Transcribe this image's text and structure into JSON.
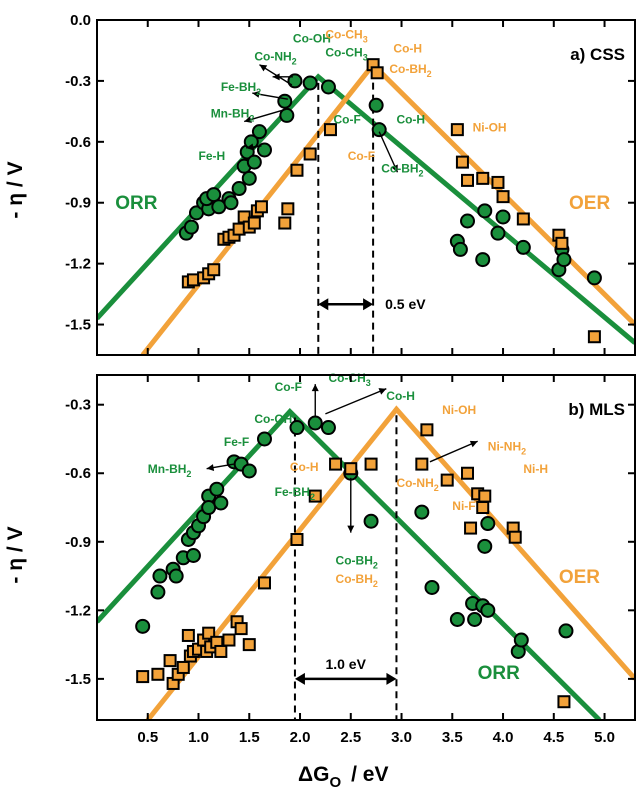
{
  "colors": {
    "orr": "#1a8f3c",
    "oer": "#f2a23a",
    "axis": "#000000"
  },
  "x_title": "ΔG",
  "x_title_sub": "O",
  "x_title_unit": "/   eV",
  "y_title": "- η  /  V",
  "chart_data": [
    {
      "type": "scatter",
      "panel_label": "a) CSS",
      "xlim": [
        0,
        5.3
      ],
      "ylim": [
        -1.65,
        0
      ],
      "x_ticks": [
        "0.5",
        "1.0",
        "1.5",
        "2.0",
        "2.5",
        "3.0",
        "3.5",
        "4.0",
        "4.5",
        "5.0"
      ],
      "y_ticks": [
        "0.0",
        "-0.3",
        "-0.6",
        "-0.9",
        "-1.2",
        "-1.5"
      ],
      "y_tick_values": [
        0.0,
        -0.3,
        -0.6,
        -0.9,
        -1.2,
        -1.5
      ],
      "series": [
        {
          "name": "ORR",
          "marker": "circle",
          "points": [
            [
              0.88,
              -1.05
            ],
            [
              0.93,
              -1.02
            ],
            [
              0.98,
              -0.95
            ],
            [
              1.05,
              -0.9
            ],
            [
              1.1,
              -0.93
            ],
            [
              1.08,
              -0.88
            ],
            [
              1.15,
              -0.86
            ],
            [
              1.2,
              -0.92
            ],
            [
              1.3,
              -0.88
            ],
            [
              1.32,
              -0.9
            ],
            [
              1.4,
              -0.83
            ],
            [
              1.45,
              -0.72
            ],
            [
              1.48,
              -0.65
            ],
            [
              1.5,
              -0.78
            ],
            [
              1.55,
              -0.7
            ],
            [
              1.52,
              -0.6
            ],
            [
              1.6,
              -0.55
            ],
            [
              1.65,
              -0.64
            ],
            [
              1.85,
              -0.4
            ],
            [
              1.87,
              -0.47
            ],
            [
              1.95,
              -0.3
            ],
            [
              2.1,
              -0.31
            ],
            [
              2.28,
              -0.33
            ],
            [
              2.75,
              -0.42
            ],
            [
              2.78,
              -0.54
            ],
            [
              3.55,
              -1.09
            ],
            [
              3.58,
              -1.13
            ],
            [
              3.65,
              -0.99
            ],
            [
              3.8,
              -1.18
            ],
            [
              3.82,
              -0.94
            ],
            [
              3.95,
              -1.05
            ],
            [
              4.0,
              -0.97
            ],
            [
              4.2,
              -1.12
            ],
            [
              4.55,
              -1.23
            ],
            [
              4.58,
              -1.13
            ],
            [
              4.6,
              -1.18
            ],
            [
              4.9,
              -1.27
            ]
          ]
        },
        {
          "name": "OER",
          "marker": "square",
          "points": [
            [
              0.9,
              -1.29
            ],
            [
              0.95,
              -1.28
            ],
            [
              1.05,
              -1.27
            ],
            [
              1.1,
              -1.25
            ],
            [
              1.15,
              -1.23
            ],
            [
              1.25,
              -1.08
            ],
            [
              1.3,
              -1.07
            ],
            [
              1.35,
              -1.06
            ],
            [
              1.4,
              -1.03
            ],
            [
              1.45,
              -0.97
            ],
            [
              1.5,
              -1.02
            ],
            [
              1.55,
              -1.0
            ],
            [
              1.58,
              -0.94
            ],
            [
              1.62,
              -0.92
            ],
            [
              1.85,
              -1.0
            ],
            [
              1.88,
              -0.93
            ],
            [
              1.97,
              -0.74
            ],
            [
              2.1,
              -0.66
            ],
            [
              2.3,
              -0.54
            ],
            [
              2.72,
              -0.22
            ],
            [
              2.76,
              -0.26
            ],
            [
              3.55,
              -0.54
            ],
            [
              3.6,
              -0.7
            ],
            [
              3.65,
              -0.79
            ],
            [
              3.8,
              -0.78
            ],
            [
              3.95,
              -0.8
            ],
            [
              4.0,
              -0.87
            ],
            [
              4.2,
              -0.98
            ],
            [
              4.55,
              -1.06
            ],
            [
              4.58,
              -1.1
            ],
            [
              4.9,
              -1.56
            ]
          ]
        }
      ],
      "volcano_lines": [
        {
          "name": "ORR",
          "left": [
            [
              0.0,
              -1.47
            ],
            [
              2.18,
              -0.28
            ]
          ],
          "right": [
            [
              2.18,
              -0.28
            ],
            [
              5.3,
              -1.59
            ]
          ]
        },
        {
          "name": "OER",
          "left": [
            [
              0.45,
              -1.65
            ],
            [
              2.72,
              -0.22
            ]
          ],
          "right": [
            [
              2.72,
              -0.22
            ],
            [
              5.3,
              -1.5
            ]
          ]
        }
      ],
      "gap": {
        "x1": 2.18,
        "x2": 2.72,
        "y": -1.4,
        "label": "0.5 eV"
      },
      "annotations": [
        {
          "text": "Co-OH",
          "series": "ORR",
          "x": 1.93,
          "y": -0.11
        },
        {
          "text": "Co-NH",
          "sub": "2",
          "series": "ORR",
          "x": 1.55,
          "y": -0.2
        },
        {
          "text": "Fe-BH",
          "sub": "2",
          "series": "ORR",
          "x": 1.22,
          "y": -0.35
        },
        {
          "text": "Mn-BH",
          "sub": "2",
          "series": "ORR",
          "x": 1.12,
          "y": -0.48
        },
        {
          "text": "Fe-H",
          "series": "ORR",
          "x": 1.0,
          "y": -0.69
        },
        {
          "text": "Co-CH",
          "sub": "3",
          "series": "ORR",
          "x": 2.25,
          "y": -0.18
        },
        {
          "text": "Co-F",
          "series": "ORR",
          "x": 2.33,
          "y": -0.51
        },
        {
          "text": "Co-H",
          "series": "ORR",
          "x": 2.95,
          "y": -0.51
        },
        {
          "text": "Co-BH",
          "sub": "2",
          "series": "ORR",
          "x": 2.8,
          "y": -0.75
        },
        {
          "text": "Co-CH",
          "sub": "3",
          "series": "OER",
          "x": 2.25,
          "y": -0.09
        },
        {
          "text": "Co-H",
          "series": "OER",
          "x": 2.92,
          "y": -0.16
        },
        {
          "text": "Co-BH",
          "sub": "2",
          "series": "OER",
          "x": 2.88,
          "y": -0.26
        },
        {
          "text": "Co-F",
          "series": "OER",
          "x": 2.47,
          "y": -0.69
        },
        {
          "text": "Ni-OH",
          "series": "OER",
          "x": 3.7,
          "y": -0.55
        }
      ],
      "arrows": [
        {
          "from": [
            1.93,
            -0.28
          ],
          "to": [
            1.73,
            -0.28
          ]
        },
        {
          "from": [
            1.88,
            -0.39
          ],
          "to": [
            1.53,
            -0.36
          ]
        },
        {
          "from": [
            1.86,
            -0.44
          ],
          "to": [
            1.45,
            -0.5
          ]
        },
        {
          "from": [
            1.92,
            -0.32
          ],
          "to": [
            1.6,
            -0.22
          ]
        },
        {
          "from": [
            2.78,
            -0.55
          ],
          "to": [
            2.96,
            -0.75
          ]
        },
        {
          "from": [
            1.62,
            -0.62
          ],
          "to": [
            1.47,
            -0.63
          ]
        }
      ]
    },
    {
      "type": "scatter",
      "panel_label": "b) MLS",
      "xlim": [
        0,
        5.3
      ],
      "ylim": [
        -1.68,
        -0.17
      ],
      "x_ticks": [
        "0.5",
        "1.0",
        "1.5",
        "2.0",
        "2.5",
        "3.0",
        "3.5",
        "4.0",
        "4.5",
        "5.0"
      ],
      "y_ticks": [
        "-0.3",
        "-0.6",
        "-0.9",
        "-1.2",
        "-1.5"
      ],
      "y_tick_values": [
        -0.3,
        -0.6,
        -0.9,
        -1.2,
        -1.5
      ],
      "series": [
        {
          "name": "ORR",
          "marker": "circle",
          "points": [
            [
              0.45,
              -1.27
            ],
            [
              0.6,
              -1.12
            ],
            [
              0.62,
              -1.05
            ],
            [
              0.75,
              -1.02
            ],
            [
              0.78,
              -1.05
            ],
            [
              0.85,
              -0.97
            ],
            [
              0.9,
              -0.89
            ],
            [
              0.95,
              -0.86
            ],
            [
              0.95,
              -0.96
            ],
            [
              1.0,
              -0.83
            ],
            [
              1.05,
              -0.79
            ],
            [
              1.1,
              -0.7
            ],
            [
              1.1,
              -0.75
            ],
            [
              1.18,
              -0.67
            ],
            [
              1.22,
              -0.73
            ],
            [
              1.35,
              -0.55
            ],
            [
              1.42,
              -0.56
            ],
            [
              1.5,
              -0.59
            ],
            [
              1.65,
              -0.45
            ],
            [
              1.97,
              -0.4
            ],
            [
              2.15,
              -0.38
            ],
            [
              2.28,
              -0.4
            ],
            [
              2.5,
              -0.6
            ],
            [
              2.7,
              -0.81
            ],
            [
              3.2,
              -0.77
            ],
            [
              3.3,
              -1.1
            ],
            [
              3.55,
              -1.24
            ],
            [
              3.7,
              -1.17
            ],
            [
              3.72,
              -1.24
            ],
            [
              3.8,
              -1.18
            ],
            [
              3.85,
              -1.2
            ],
            [
              3.82,
              -0.92
            ],
            [
              3.85,
              -0.82
            ],
            [
              4.15,
              -1.38
            ],
            [
              4.18,
              -1.33
            ],
            [
              4.62,
              -1.29
            ]
          ]
        },
        {
          "name": "OER",
          "marker": "square",
          "points": [
            [
              0.45,
              -1.49
            ],
            [
              0.6,
              -1.48
            ],
            [
              0.72,
              -1.42
            ],
            [
              0.75,
              -1.52
            ],
            [
              0.8,
              -1.48
            ],
            [
              0.85,
              -1.45
            ],
            [
              0.9,
              -1.31
            ],
            [
              0.92,
              -1.4
            ],
            [
              0.95,
              -1.38
            ],
            [
              1.0,
              -1.37
            ],
            [
              1.05,
              -1.33
            ],
            [
              1.08,
              -1.38
            ],
            [
              1.1,
              -1.3
            ],
            [
              1.12,
              -1.36
            ],
            [
              1.18,
              -1.34
            ],
            [
              1.22,
              -1.38
            ],
            [
              1.3,
              -1.33
            ],
            [
              1.38,
              -1.25
            ],
            [
              1.42,
              -1.28
            ],
            [
              1.5,
              -1.35
            ],
            [
              1.65,
              -1.08
            ],
            [
              1.97,
              -0.89
            ],
            [
              2.15,
              -0.7
            ],
            [
              2.35,
              -0.56
            ],
            [
              2.5,
              -0.58
            ],
            [
              2.7,
              -0.56
            ],
            [
              3.25,
              -0.41
            ],
            [
              3.2,
              -0.56
            ],
            [
              3.45,
              -0.63
            ],
            [
              3.65,
              -0.6
            ],
            [
              3.68,
              -0.84
            ],
            [
              3.75,
              -0.69
            ],
            [
              3.8,
              -0.75
            ],
            [
              3.82,
              -0.7
            ],
            [
              4.1,
              -0.84
            ],
            [
              4.12,
              -0.88
            ],
            [
              4.6,
              -1.6
            ]
          ]
        }
      ],
      "volcano_lines": [
        {
          "name": "ORR",
          "left": [
            [
              0.0,
              -1.25
            ],
            [
              1.9,
              -0.33
            ]
          ],
          "right": [
            [
              1.9,
              -0.33
            ],
            [
              4.95,
              -1.68
            ]
          ]
        },
        {
          "name": "OER",
          "left": [
            [
              0.5,
              -1.68
            ],
            [
              2.95,
              -0.32
            ]
          ],
          "right": [
            [
              2.95,
              -0.32
            ],
            [
              5.3,
              -1.5
            ]
          ]
        }
      ],
      "gap": {
        "x1": 1.95,
        "x2": 2.95,
        "y": -1.5,
        "label": "1.0 eV"
      },
      "annotations": [
        {
          "text": "Co-F",
          "series": "ORR",
          "x": 1.75,
          "y": -0.24
        },
        {
          "text": "Co-CH",
          "sub": "3",
          "series": "ORR",
          "x": 2.28,
          "y": -0.2
        },
        {
          "text": "Co-H",
          "series": "ORR",
          "x": 2.85,
          "y": -0.28
        },
        {
          "text": "Co-OH",
          "series": "ORR",
          "x": 1.55,
          "y": -0.38
        },
        {
          "text": "Fe-F",
          "series": "ORR",
          "x": 1.25,
          "y": -0.48
        },
        {
          "text": "Mn-BH",
          "sub": "2",
          "series": "ORR",
          "x": 0.5,
          "y": -0.6
        },
        {
          "text": "Fe-BH",
          "sub": "2",
          "series": "ORR",
          "x": 1.75,
          "y": -0.7
        },
        {
          "text": "Co-BH",
          "sub": "2",
          "series": "ORR",
          "x": 2.35,
          "y": -1.0
        },
        {
          "text": "Co-H",
          "series": "OER",
          "x": 1.9,
          "y": -0.59
        },
        {
          "text": "Co-NH",
          "sub": "2",
          "series": "OER",
          "x": 2.95,
          "y": -0.66
        },
        {
          "text": "Co-BH",
          "sub": "2",
          "series": "OER",
          "x": 2.35,
          "y": -1.08
        },
        {
          "text": "Ni-OH",
          "series": "OER",
          "x": 3.4,
          "y": -0.34
        },
        {
          "text": "Ni-NH",
          "sub": "2",
          "series": "OER",
          "x": 3.85,
          "y": -0.5
        },
        {
          "text": "Ni-H",
          "series": "OER",
          "x": 4.2,
          "y": -0.6
        },
        {
          "text": "Ni-F",
          "series": "OER",
          "x": 3.5,
          "y": -0.76
        }
      ],
      "arrows": [
        {
          "from": [
            2.15,
            -0.35
          ],
          "to": [
            2.15,
            -0.21
          ]
        },
        {
          "from": [
            2.25,
            -0.34
          ],
          "to": [
            2.85,
            -0.23
          ]
        },
        {
          "from": [
            1.35,
            -0.56
          ],
          "to": [
            1.08,
            -0.58
          ]
        },
        {
          "from": [
            2.5,
            -0.62
          ],
          "to": [
            2.5,
            -0.86
          ]
        },
        {
          "from": [
            3.28,
            -0.55
          ],
          "to": [
            3.75,
            -0.46
          ]
        }
      ],
      "series_labels_override": {
        "ORR": [
          3.75,
          -1.5
        ],
        "OER": [
          4.55,
          -1.08
        ]
      }
    }
  ]
}
